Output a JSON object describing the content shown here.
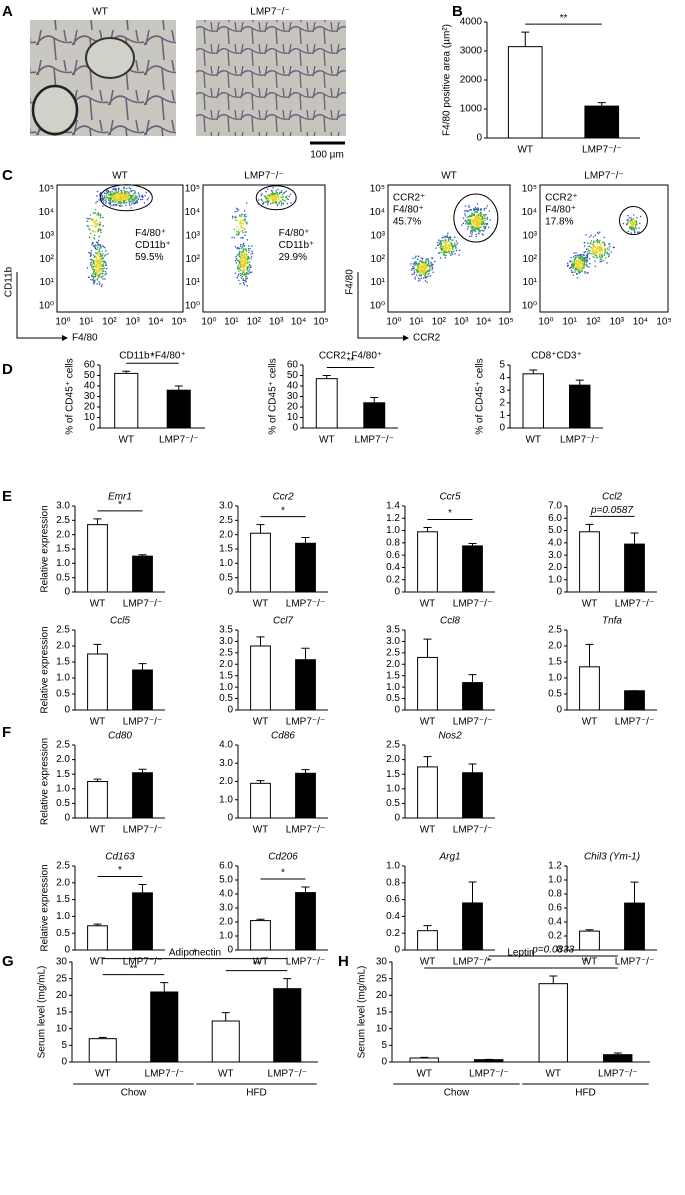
{
  "panel_labels": [
    "A",
    "B",
    "C",
    "D",
    "E",
    "F",
    "G",
    "H"
  ],
  "histology": {
    "labels": [
      "WT",
      "LMP7⁻/⁻"
    ],
    "scale_bar": "100 µm"
  },
  "flow": {
    "tick_labels": [
      "10⁰",
      "10¹",
      "10²",
      "10³",
      "10⁴",
      "10⁵"
    ],
    "axes": [
      {
        "x": "F4/80",
        "y": "CD11b"
      },
      {
        "x": "CCR2",
        "y": "F4/80"
      }
    ],
    "plots": [
      {
        "title": "WT",
        "gate": [
          "F4/80⁺",
          "CD11b⁺",
          "59.5%"
        ]
      },
      {
        "title": "LMP7⁻/⁻",
        "gate": [
          "F4/80⁺",
          "CD11b⁺",
          "29.9%"
        ]
      },
      {
        "title": "WT",
        "gate": [
          "CCR2⁺",
          "F4/80⁺",
          "45.7%"
        ]
      },
      {
        "title": "LMP7⁻/⁻",
        "gate": [
          "CCR2⁺",
          "F4/80⁺",
          "17.8%"
        ]
      }
    ]
  },
  "chart_data": [
    {
      "type": "bar",
      "ylabel": "F4/80 positive area (µm²)",
      "categories": [
        "WT",
        "LMP7⁻/⁻"
      ],
      "values": [
        3150,
        1100
      ],
      "errors": [
        500,
        120
      ],
      "colors": [
        "#ffffff",
        "#000000"
      ],
      "ylim": [
        0,
        4000
      ],
      "yticks": [
        0,
        1000,
        2000,
        3000,
        4000
      ],
      "annotations": [
        {
          "text": "**",
          "from": 0,
          "to": 1
        }
      ]
    },
    {
      "type": "bar",
      "title": "CD11b⁺F4/80⁺",
      "ylabel": "% of CD45⁺ cells",
      "categories": [
        "WT",
        "LMP7⁻/⁻"
      ],
      "values": [
        52,
        36
      ],
      "errors": [
        2,
        4
      ],
      "colors": [
        "#ffffff",
        "#000000"
      ],
      "ylim": [
        0,
        60
      ],
      "yticks": [
        0,
        10,
        20,
        30,
        40,
        50,
        60
      ],
      "annotations": [
        {
          "text": "*",
          "from": 0,
          "to": 1
        }
      ]
    },
    {
      "type": "bar",
      "title": "CCR2⁺F4/80⁺",
      "ylabel": "% of CD45⁺ cells",
      "categories": [
        "WT",
        "LMP7⁻/⁻"
      ],
      "values": [
        47,
        24
      ],
      "errors": [
        3,
        5
      ],
      "colors": [
        "#ffffff",
        "#000000"
      ],
      "ylim": [
        0,
        60
      ],
      "yticks": [
        0,
        10,
        20,
        30,
        40,
        50,
        60
      ],
      "annotations": [
        {
          "text": "**",
          "from": 0,
          "to": 1
        }
      ]
    },
    {
      "type": "bar",
      "title": "CD8⁺CD3⁺",
      "ylabel": "% of CD45⁺ cells",
      "categories": [
        "WT",
        "LMP7⁻/⁻"
      ],
      "values": [
        4.3,
        3.4
      ],
      "errors": [
        0.3,
        0.4
      ],
      "colors": [
        "#ffffff",
        "#000000"
      ],
      "ylim": [
        0,
        5
      ],
      "yticks": [
        0,
        1,
        2,
        3,
        4,
        5
      ]
    },
    {
      "type": "bar",
      "title": "Emr1",
      "title_italic": true,
      "ylabel": "Relative expression",
      "categories": [
        "WT",
        "LMP7⁻/⁻"
      ],
      "values": [
        2.35,
        1.25
      ],
      "errors": [
        0.2,
        0.05
      ],
      "colors": [
        "#ffffff",
        "#000000"
      ],
      "ylim": [
        0,
        3
      ],
      "yticks": [
        0,
        0.5,
        {
          "value": 1,
          "label": "1.0"
        },
        1.5,
        {
          "value": 2,
          "label": "2.0"
        },
        2.5,
        {
          "value": 3,
          "label": "3.0"
        }
      ],
      "annotations": [
        {
          "text": "*",
          "from": 0,
          "to": 1
        }
      ]
    },
    {
      "type": "bar",
      "title": "Ccr2",
      "title_italic": true,
      "categories": [
        "WT",
        "LMP7⁻/⁻"
      ],
      "values": [
        2.05,
        1.7
      ],
      "errors": [
        0.3,
        0.2
      ],
      "colors": [
        "#ffffff",
        "#000000"
      ],
      "ylim": [
        0,
        3
      ],
      "yticks": [
        0,
        0.5,
        {
          "value": 1,
          "label": "1.0"
        },
        1.5,
        {
          "value": 2,
          "label": "2.0"
        },
        2.5,
        {
          "value": 3,
          "label": "3.0"
        }
      ],
      "annotations": [
        {
          "text": "*",
          "from": 0,
          "to": 1
        }
      ]
    },
    {
      "type": "bar",
      "title": "Ccr5",
      "title_italic": true,
      "categories": [
        "WT",
        "LMP7⁻/⁻"
      ],
      "values": [
        0.98,
        0.75
      ],
      "errors": [
        0.07,
        0.04
      ],
      "colors": [
        "#ffffff",
        "#000000"
      ],
      "ylim": [
        0,
        1.4
      ],
      "yticks": [
        0,
        0.2,
        0.4,
        0.6,
        0.8,
        {
          "value": 1,
          "label": "1.0"
        },
        1.2,
        1.4
      ],
      "annotations": [
        {
          "text": "*",
          "from": 0,
          "to": 1
        }
      ]
    },
    {
      "type": "bar",
      "title": "Ccl2",
      "title_italic": true,
      "categories": [
        "WT",
        "LMP7⁻/⁻"
      ],
      "values": [
        4.9,
        3.9
      ],
      "errors": [
        0.6,
        0.9
      ],
      "colors": [
        "#ffffff",
        "#000000"
      ],
      "ylim": [
        0,
        7
      ],
      "yticks": [
        0,
        {
          "value": 1,
          "label": "1.0"
        },
        {
          "value": 2,
          "label": "2.0"
        },
        {
          "value": 3,
          "label": "3.0"
        },
        {
          "value": 4,
          "label": "4.0"
        },
        {
          "value": 5,
          "label": "5.0"
        },
        {
          "value": 6,
          "label": "6.0"
        },
        {
          "value": 7,
          "label": "7.0"
        }
      ],
      "annotations": [
        {
          "text": "p=0.0587",
          "from": 0,
          "to": 1
        }
      ]
    },
    {
      "type": "bar",
      "title": "Ccl5",
      "title_italic": true,
      "ylabel": "Relative expression",
      "categories": [
        "WT",
        "LMP7⁻/⁻"
      ],
      "values": [
        1.75,
        1.25
      ],
      "errors": [
        0.3,
        0.2
      ],
      "colors": [
        "#ffffff",
        "#000000"
      ],
      "ylim": [
        0,
        2.5
      ],
      "yticks": [
        0,
        0.5,
        {
          "value": 1,
          "label": "1.0"
        },
        1.5,
        {
          "value": 2,
          "label": "2.0"
        },
        2.5
      ]
    },
    {
      "type": "bar",
      "title": "Ccl7",
      "title_italic": true,
      "categories": [
        "WT",
        "LMP7⁻/⁻"
      ],
      "values": [
        2.8,
        2.2
      ],
      "errors": [
        0.4,
        0.5
      ],
      "colors": [
        "#ffffff",
        "#000000"
      ],
      "ylim": [
        0,
        3.5
      ],
      "yticks": [
        0,
        0.5,
        {
          "value": 1,
          "label": "1.0"
        },
        1.5,
        {
          "value": 2,
          "label": "2.0"
        },
        2.5,
        {
          "value": 3,
          "label": "3.0"
        },
        3.5
      ]
    },
    {
      "type": "bar",
      "title": "Ccl8",
      "title_italic": true,
      "categories": [
        "WT",
        "LMP7⁻/⁻"
      ],
      "values": [
        2.3,
        1.2
      ],
      "errors": [
        0.8,
        0.35
      ],
      "colors": [
        "#ffffff",
        "#000000"
      ],
      "ylim": [
        0,
        3.5
      ],
      "yticks": [
        0,
        0.5,
        {
          "value": 1,
          "label": "1.0"
        },
        1.5,
        {
          "value": 2,
          "label": "2.0"
        },
        2.5,
        {
          "value": 3,
          "label": "3.0"
        },
        3.5
      ]
    },
    {
      "type": "bar",
      "title": "Tnfa",
      "title_italic": true,
      "categories": [
        "WT",
        "LMP7⁻/⁻"
      ],
      "values": [
        1.35,
        0.6
      ],
      "errors": [
        0.7,
        0
      ],
      "colors": [
        "#ffffff",
        "#000000"
      ],
      "ylim": [
        0,
        2.5
      ],
      "yticks": [
        0,
        0.5,
        {
          "value": 1,
          "label": "1.0"
        },
        1.5,
        {
          "value": 2,
          "label": "2.0"
        },
        2.5
      ]
    },
    {
      "type": "bar",
      "title": "Cd80",
      "title_italic": true,
      "ylabel": "Relative expression",
      "categories": [
        "WT",
        "LMP7⁻/⁻"
      ],
      "values": [
        1.25,
        1.55
      ],
      "errors": [
        0.08,
        0.12
      ],
      "colors": [
        "#ffffff",
        "#000000"
      ],
      "ylim": [
        0,
        2.5
      ],
      "yticks": [
        0,
        0.5,
        {
          "value": 1,
          "label": "1.0"
        },
        1.5,
        {
          "value": 2,
          "label": "2.0"
        },
        2.5
      ]
    },
    {
      "type": "bar",
      "title": "Cd86",
      "title_italic": true,
      "categories": [
        "WT",
        "LMP7⁻/⁻"
      ],
      "values": [
        1.9,
        2.45
      ],
      "errors": [
        0.15,
        0.2
      ],
      "colors": [
        "#ffffff",
        "#000000"
      ],
      "ylim": [
        0,
        4
      ],
      "yticks": [
        0,
        {
          "value": 1,
          "label": "1.0"
        },
        {
          "value": 2,
          "label": "2.0"
        },
        {
          "value": 3,
          "label": "3.0"
        },
        {
          "value": 4,
          "label": "4.0"
        }
      ]
    },
    {
      "type": "bar",
      "title": "Nos2",
      "title_italic": true,
      "categories": [
        "WT",
        "LMP7⁻/⁻"
      ],
      "values": [
        1.75,
        1.55
      ],
      "errors": [
        0.35,
        0.3
      ],
      "colors": [
        "#ffffff",
        "#000000"
      ],
      "ylim": [
        0,
        2.5
      ],
      "yticks": [
        0,
        0.5,
        {
          "value": 1,
          "label": "1.0"
        },
        1.5,
        {
          "value": 2,
          "label": "2.0"
        },
        2.5
      ]
    },
    {
      "type": "bar",
      "title": "Cd163",
      "title_italic": true,
      "ylabel": "Relative expression",
      "categories": [
        "WT",
        "LMP7⁻/⁻"
      ],
      "values": [
        0.72,
        1.7
      ],
      "errors": [
        0.05,
        0.25
      ],
      "colors": [
        "#ffffff",
        "#000000"
      ],
      "ylim": [
        0,
        2.5
      ],
      "yticks": [
        0,
        0.5,
        {
          "value": 1,
          "label": "1.0"
        },
        1.5,
        {
          "value": 2,
          "label": "2.0"
        },
        2.5
      ],
      "annotations": [
        {
          "text": "*",
          "from": 0,
          "to": 1
        }
      ]
    },
    {
      "type": "bar",
      "title": "Cd206",
      "title_italic": true,
      "categories": [
        "WT",
        "LMP7⁻/⁻"
      ],
      "values": [
        2.1,
        4.1
      ],
      "errors": [
        0.1,
        0.4
      ],
      "colors": [
        "#ffffff",
        "#000000"
      ],
      "ylim": [
        0,
        6
      ],
      "yticks": [
        0,
        {
          "value": 1,
          "label": "1.0"
        },
        {
          "value": 2,
          "label": "2.0"
        },
        {
          "value": 3,
          "label": "3.0"
        },
        {
          "value": 4,
          "label": "4.0"
        },
        {
          "value": 5,
          "label": "5.0"
        },
        {
          "value": 6,
          "label": "6.0"
        }
      ],
      "annotations": [
        {
          "text": "*",
          "from": 0,
          "to": 1
        }
      ]
    },
    {
      "type": "bar",
      "title": "Arg1",
      "title_italic": true,
      "categories": [
        "WT",
        "LMP7⁻/⁻"
      ],
      "values": [
        0.23,
        0.56
      ],
      "errors": [
        0.06,
        0.25
      ],
      "colors": [
        "#ffffff",
        "#000000"
      ],
      "ylim": [
        0,
        1
      ],
      "yticks": [
        0,
        0.2,
        0.4,
        0.6,
        0.8,
        {
          "value": 1,
          "label": "1.0"
        }
      ]
    },
    {
      "type": "bar",
      "title": "Chil3 (Ym-1)",
      "title_italic": true,
      "categories": [
        "WT",
        "LMP7⁻/⁻"
      ],
      "values": [
        0.27,
        0.67
      ],
      "errors": [
        0.02,
        0.3
      ],
      "colors": [
        "#ffffff",
        "#000000"
      ],
      "ylim": [
        0,
        1.2
      ],
      "yticks": [
        0,
        0.2,
        0.4,
        0.6,
        0.8,
        {
          "value": 1,
          "label": "1.0"
        },
        1.2
      ]
    },
    {
      "type": "bar",
      "title": "Adiponectin",
      "ylabel": "Serum level (mg/mL)",
      "categories": [
        "WT",
        "LMP7⁻/⁻",
        "WT",
        "LMP7⁻/⁻"
      ],
      "values": [
        7,
        21,
        12.3,
        22
      ],
      "errors": [
        0.4,
        2.8,
        2.5,
        3
      ],
      "colors": [
        "#ffffff",
        "#000000",
        "#ffffff",
        "#000000"
      ],
      "ylim": [
        0,
        30
      ],
      "yticks": [
        0,
        5,
        10,
        15,
        20,
        25,
        30
      ],
      "groups": [
        {
          "name": "Chow",
          "from": 0,
          "to": 1
        },
        {
          "name": "HFD",
          "from": 2,
          "to": 3
        }
      ],
      "annotations": [
        {
          "text": "**",
          "from": 0,
          "to": 1
        },
        {
          "text": "**",
          "from": 2,
          "to": 3
        },
        {
          "text": "*",
          "from": 0,
          "to": 3
        }
      ]
    },
    {
      "type": "bar",
      "title": "Leptin",
      "ylabel": "Serum level (mg/mL)",
      "categories": [
        "WT",
        "LMP7⁻/⁻",
        "WT",
        "LMP7⁻/⁻"
      ],
      "values": [
        1.2,
        0.7,
        23.5,
        2.2
      ],
      "errors": [
        0.2,
        0.1,
        2.3,
        0.5
      ],
      "colors": [
        "#ffffff",
        "#000000",
        "#ffffff",
        "#000000"
      ],
      "ylim": [
        0,
        30
      ],
      "yticks": [
        0,
        5,
        10,
        15,
        20,
        25,
        30
      ],
      "groups": [
        {
          "name": "Chow",
          "from": 0,
          "to": 1
        },
        {
          "name": "HFD",
          "from": 2,
          "to": 3
        }
      ],
      "annotations": [
        {
          "text": "*",
          "from": 0,
          "to": 2
        },
        {
          "text": "*",
          "from": 2,
          "to": 3
        },
        {
          "text": "p=0.0833",
          "from": 1,
          "to": 3
        }
      ]
    }
  ]
}
